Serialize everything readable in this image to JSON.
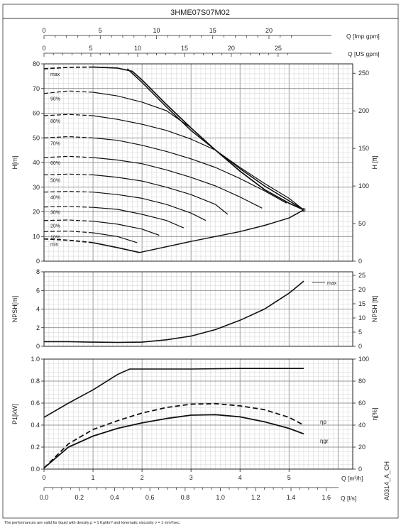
{
  "title": "3HME07S07M02",
  "footnote": "The performances are valid for liquid with density ρ = 1 Kg/dm³ and kinematic viscosity ν = 1 mm²/sec.",
  "doc_code": "A0314_A_CH",
  "chart_data": [
    {
      "type": "line",
      "panel": "head",
      "ylabel_left": "H[m]",
      "ylabel_right": "H [ft]",
      "ylim": [
        0,
        80
      ],
      "yticks": [
        0,
        10,
        20,
        30,
        40,
        50,
        60,
        70,
        80
      ],
      "ylim_right": [
        0,
        262.5
      ],
      "yticks_right": [
        0,
        50,
        100,
        150,
        200,
        250
      ],
      "top_axis_imp": {
        "label": "Q [Imp gpm]",
        "ticks": [
          0,
          5,
          10,
          15,
          20
        ],
        "max": 23.09
      },
      "top_axis_us": {
        "label": "Q [US gpm]",
        "ticks": [
          0,
          5,
          10,
          15,
          20,
          25
        ],
        "max": 27.73
      },
      "xlim": [
        0,
        6.3
      ],
      "grid": true,
      "speed_labels": [
        "max",
        "90%",
        "80%",
        "70%",
        "60%",
        "50%",
        "40%",
        "30%",
        "20%",
        "10%",
        "min"
      ],
      "series": [
        {
          "name": "max",
          "x": [
            0,
            0.5,
            1.0,
            1.5,
            1.8,
            2.0,
            2.5,
            3.0,
            3.5,
            4.0,
            4.5,
            5.0,
            5.3
          ],
          "y": [
            78,
            78.6,
            78.7,
            78.3,
            77,
            73.5,
            63.5,
            54,
            45,
            36.5,
            29,
            23.5,
            20.8
          ]
        },
        {
          "name": "90%",
          "x": [
            0,
            0.5,
            1.0,
            1.5,
            2.0,
            2.5,
            3.0,
            3.5,
            4.0,
            4.5,
            5.0,
            5.3
          ],
          "y": [
            68,
            69,
            68.5,
            67,
            64.5,
            61,
            54,
            45,
            36.5,
            29,
            23.5,
            20.8
          ]
        },
        {
          "name": "80%",
          "x": [
            0,
            0.5,
            1.0,
            1.5,
            2.0,
            2.5,
            3.0,
            3.5,
            4.0,
            4.5,
            5.0,
            5.3
          ],
          "y": [
            59,
            59.5,
            59,
            57.5,
            55.5,
            53,
            49.5,
            45,
            38,
            31.5,
            25.5,
            20.8
          ]
        },
        {
          "name": "70%",
          "x": [
            0,
            0.5,
            1.0,
            1.5,
            2.0,
            2.5,
            3.0,
            3.5,
            4.0,
            4.5,
            4.95
          ],
          "y": [
            50,
            50.5,
            50,
            49,
            47,
            44.5,
            41.5,
            38,
            33.5,
            28.5,
            23.5
          ]
        },
        {
          "name": "60%",
          "x": [
            0,
            0.5,
            1.0,
            1.5,
            2.0,
            2.5,
            3.0,
            3.5,
            4.0,
            4.45
          ],
          "y": [
            42,
            42.5,
            42,
            41,
            39.5,
            37,
            34,
            30.5,
            26,
            21.5
          ]
        },
        {
          "name": "50%",
          "x": [
            0,
            0.5,
            1.0,
            1.5,
            2.0,
            2.5,
            3.0,
            3.5,
            3.75
          ],
          "y": [
            35,
            35.3,
            35,
            34,
            32.5,
            30,
            27,
            23,
            19
          ]
        },
        {
          "name": "40%",
          "x": [
            0,
            0.5,
            1.0,
            1.5,
            2.0,
            2.5,
            3.0,
            3.3
          ],
          "y": [
            28,
            28.3,
            28,
            27,
            25.5,
            23,
            19.5,
            16.5
          ]
        },
        {
          "name": "30%",
          "x": [
            0,
            0.5,
            1.0,
            1.5,
            2.0,
            2.5,
            2.85
          ],
          "y": [
            22,
            22.2,
            21.8,
            21,
            19,
            16.5,
            13.5
          ]
        },
        {
          "name": "20%",
          "x": [
            0,
            0.5,
            1.0,
            1.5,
            2.0,
            2.35
          ],
          "y": [
            16.5,
            16.7,
            16.2,
            15,
            13,
            10.5
          ]
        },
        {
          "name": "10%",
          "x": [
            0,
            0.5,
            1.0,
            1.5,
            1.9
          ],
          "y": [
            12,
            12.2,
            11.5,
            10,
            7.5
          ]
        },
        {
          "name": "min",
          "x": [
            0,
            0.5,
            1.0,
            1.5,
            1.95
          ],
          "y": [
            9,
            8.5,
            7.5,
            5.5,
            3.5
          ]
        },
        {
          "name": "min-flow limit",
          "x": [
            1.95,
            3.0,
            4.0,
            4.5,
            5.0,
            5.3
          ],
          "y": [
            3.5,
            8,
            12,
            14.5,
            17.5,
            20.8
          ]
        },
        {
          "name": "max-power limit",
          "x": [
            1.7,
            2.0,
            2.5,
            3.0,
            3.5,
            4.0,
            4.5,
            5.0,
            5.3
          ],
          "y": [
            78,
            72.5,
            62.5,
            53,
            45,
            37.5,
            30.5,
            24.5,
            20.8
          ]
        }
      ]
    },
    {
      "type": "line",
      "panel": "npsh",
      "ylabel_left": "NPSH[m]",
      "ylabel_right": "NPSH [ft]",
      "ylim": [
        0,
        8
      ],
      "yticks": [
        0,
        2,
        4,
        6,
        8
      ],
      "ylim_right": [
        0,
        26.25
      ],
      "yticks_right": [
        0,
        5,
        10,
        15,
        20,
        25
      ],
      "xlim": [
        0,
        6.3
      ],
      "grid": true,
      "series": [
        {
          "name": "max",
          "x": [
            0,
            0.5,
            1.0,
            1.5,
            2.0,
            2.5,
            3.0,
            3.5,
            4.0,
            4.5,
            5.0,
            5.3
          ],
          "y": [
            0.5,
            0.5,
            0.45,
            0.42,
            0.45,
            0.7,
            1.1,
            1.8,
            2.8,
            4.0,
            5.7,
            7.0
          ]
        }
      ]
    },
    {
      "type": "line",
      "panel": "power-efficiency",
      "ylabel_left": "P1[kW]",
      "ylabel_right": "η[%]",
      "ylim": [
        0,
        1.0
      ],
      "yticks": [
        0.0,
        0.2,
        0.4,
        0.6,
        0.8,
        1.0
      ],
      "ylim_right": [
        0,
        100
      ],
      "yticks_right": [
        0,
        20,
        40,
        60,
        80,
        100
      ],
      "xlabel": "Q [m³/h]",
      "xticks": [
        0,
        1,
        2,
        3,
        4,
        5
      ],
      "xlim": [
        0,
        6.3
      ],
      "bottom_axis_ls": {
        "label": "Q [l/s]",
        "ticks": [
          "0.0",
          "0.2",
          "0.4",
          "0.6",
          "0.8",
          "1.0",
          "1.2",
          "1.4",
          "1.6"
        ],
        "max": 1.75
      },
      "grid": true,
      "series_labels": {
        "eta_p": "ηp",
        "eta_gr": "ηgr"
      },
      "series": [
        {
          "name": "P1",
          "x": [
            0,
            0.5,
            1.0,
            1.5,
            1.75,
            2.0,
            3.0,
            4.0,
            5.3
          ],
          "y": [
            0.47,
            0.6,
            0.72,
            0.86,
            0.91,
            0.91,
            0.91,
            0.915,
            0.915
          ]
        },
        {
          "name": "ηp",
          "x": [
            0,
            0.5,
            1.0,
            1.5,
            2.0,
            2.5,
            3.0,
            3.5,
            4.0,
            4.5,
            5.0,
            5.3
          ],
          "y": [
            1,
            23,
            36,
            44,
            51,
            56,
            59,
            59.5,
            57.5,
            54,
            47,
            40
          ]
        },
        {
          "name": "ηgr",
          "x": [
            0,
            0.5,
            1.0,
            1.5,
            2.0,
            2.5,
            3.0,
            3.5,
            4.0,
            4.5,
            5.0,
            5.3
          ],
          "y": [
            1,
            20,
            30,
            37,
            42,
            46,
            49,
            49.5,
            47.5,
            43,
            37,
            32
          ]
        }
      ]
    }
  ]
}
